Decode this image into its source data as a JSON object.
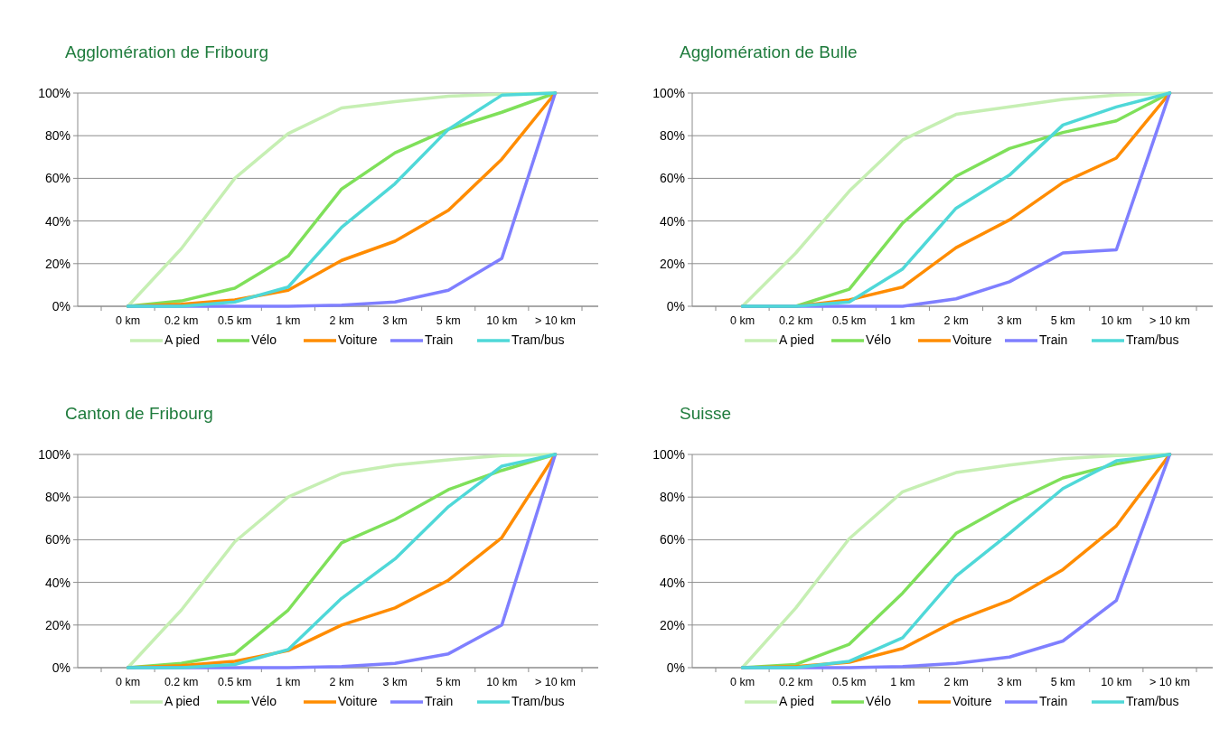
{
  "chart_data": [
    {
      "type": "line",
      "title": "Agglomération de Fribourg",
      "categories": [
        "0 km",
        "0.2 km",
        "0.5 km",
        "1 km",
        "2 km",
        "3 km",
        "5 km",
        "10 km",
        "> 10 km"
      ],
      "ylim": [
        0,
        100
      ],
      "yticks": [
        {
          "value": 0,
          "label": "0%"
        },
        {
          "value": 20,
          "label": "20%"
        },
        {
          "value": 40,
          "label": "40%"
        },
        {
          "value": 60,
          "label": "60%"
        },
        {
          "value": 80,
          "label": "80%"
        },
        {
          "value": 100,
          "label": "100%"
        }
      ],
      "grid": "y",
      "legend": "bottom",
      "marker": "none",
      "line_style": "solid",
      "series": [
        {
          "name": "A pied",
          "color": "#c6efb3",
          "values": [
            0,
            27,
            60,
            81,
            93,
            96,
            98.5,
            99.5,
            100
          ]
        },
        {
          "name": "Vélo",
          "color": "#7fe05a",
          "values": [
            0,
            2.5,
            8.5,
            23.5,
            55,
            72,
            83,
            91,
            100
          ]
        },
        {
          "name": "Voiture",
          "color": "#ff8c00",
          "values": [
            0,
            1,
            3,
            7.5,
            21.5,
            30.5,
            45,
            69,
            100
          ]
        },
        {
          "name": "Train",
          "color": "#7f7fff",
          "values": [
            0,
            0,
            0,
            0,
            0.5,
            2,
            7.5,
            22.5,
            100
          ]
        },
        {
          "name": "Tram/bus",
          "color": "#4fd8d8",
          "values": [
            0,
            0,
            2,
            9,
            37,
            57.5,
            83,
            99,
            100
          ]
        }
      ]
    },
    {
      "type": "line",
      "title": "Agglomération de Bulle",
      "categories": [
        "0 km",
        "0.2 km",
        "0.5 km",
        "1 km",
        "2 km",
        "3 km",
        "5 km",
        "10 km",
        "> 10 km"
      ],
      "ylim": [
        0,
        100
      ],
      "yticks": [
        {
          "value": 0,
          "label": "0%"
        },
        {
          "value": 20,
          "label": "20%"
        },
        {
          "value": 40,
          "label": "40%"
        },
        {
          "value": 60,
          "label": "60%"
        },
        {
          "value": 80,
          "label": "80%"
        },
        {
          "value": 100,
          "label": "100%"
        }
      ],
      "grid": "y",
      "legend": "bottom",
      "marker": "none",
      "line_style": "solid",
      "series": [
        {
          "name": "A pied",
          "color": "#c6efb3",
          "values": [
            0,
            25,
            54,
            78,
            90,
            93.5,
            97,
            99,
            100
          ]
        },
        {
          "name": "Vélo",
          "color": "#7fe05a",
          "values": [
            0,
            0,
            8,
            39,
            61,
            74,
            81.5,
            87,
            100
          ]
        },
        {
          "name": "Voiture",
          "color": "#ff8c00",
          "values": [
            0,
            0,
            3,
            9,
            27.5,
            40.5,
            58,
            69.5,
            100
          ]
        },
        {
          "name": "Train",
          "color": "#7f7fff",
          "values": [
            0,
            0,
            0,
            0,
            3.5,
            11.5,
            25,
            26.5,
            100
          ]
        },
        {
          "name": "Tram/bus",
          "color": "#4fd8d8",
          "values": [
            0,
            0,
            2,
            17.5,
            46,
            61.5,
            85,
            93.5,
            100
          ]
        }
      ]
    },
    {
      "type": "line",
      "title": "Canton de Fribourg",
      "categories": [
        "0 km",
        "0.2 km",
        "0.5 km",
        "1 km",
        "2 km",
        "3 km",
        "5 km",
        "10 km",
        "> 10 km"
      ],
      "ylim": [
        0,
        100
      ],
      "yticks": [
        {
          "value": 0,
          "label": "0%"
        },
        {
          "value": 20,
          "label": "20%"
        },
        {
          "value": 40,
          "label": "40%"
        },
        {
          "value": 60,
          "label": "60%"
        },
        {
          "value": 80,
          "label": "80%"
        },
        {
          "value": 100,
          "label": "100%"
        }
      ],
      "grid": "y",
      "legend": "bottom",
      "marker": "none",
      "line_style": "solid",
      "series": [
        {
          "name": "A pied",
          "color": "#c6efb3",
          "values": [
            0,
            27,
            59,
            80,
            91,
            95,
            97.5,
            99.5,
            100
          ]
        },
        {
          "name": "Vélo",
          "color": "#7fe05a",
          "values": [
            0,
            2,
            6.5,
            27,
            58.5,
            69.5,
            83.5,
            92.5,
            100
          ]
        },
        {
          "name": "Voiture",
          "color": "#ff8c00",
          "values": [
            0,
            1,
            3,
            8,
            20,
            28,
            41,
            61,
            100
          ]
        },
        {
          "name": "Train",
          "color": "#7f7fff",
          "values": [
            0,
            0,
            0,
            0,
            0.5,
            2,
            6.5,
            20,
            100
          ]
        },
        {
          "name": "Tram/bus",
          "color": "#4fd8d8",
          "values": [
            0,
            0,
            1.5,
            8.5,
            32.5,
            51,
            75.5,
            94.5,
            100
          ]
        }
      ]
    },
    {
      "type": "line",
      "title": "Suisse",
      "categories": [
        "0 km",
        "0.2 km",
        "0.5 km",
        "1 km",
        "2 km",
        "3 km",
        "5 km",
        "10 km",
        "> 10 km"
      ],
      "ylim": [
        0,
        100
      ],
      "yticks": [
        {
          "value": 0,
          "label": "0%"
        },
        {
          "value": 20,
          "label": "20%"
        },
        {
          "value": 40,
          "label": "40%"
        },
        {
          "value": 60,
          "label": "60%"
        },
        {
          "value": 80,
          "label": "80%"
        },
        {
          "value": 100,
          "label": "100%"
        }
      ],
      "grid": "y",
      "legend": "bottom",
      "marker": "none",
      "line_style": "solid",
      "series": [
        {
          "name": "A pied",
          "color": "#c6efb3",
          "values": [
            0,
            28,
            60.5,
            82.5,
            91.5,
            95,
            98,
            99.5,
            100
          ]
        },
        {
          "name": "Vélo",
          "color": "#7fe05a",
          "values": [
            0,
            1.5,
            11,
            35,
            63,
            77,
            89,
            95.5,
            100
          ]
        },
        {
          "name": "Voiture",
          "color": "#ff8c00",
          "values": [
            0,
            0.5,
            2.5,
            9,
            22,
            31.5,
            46,
            66.5,
            100
          ]
        },
        {
          "name": "Train",
          "color": "#7f7fff",
          "values": [
            0,
            0,
            0,
            0.5,
            2,
            5,
            12.5,
            31.5,
            100
          ]
        },
        {
          "name": "Tram/bus",
          "color": "#4fd8d8",
          "values": [
            0,
            0,
            3,
            14,
            43,
            63,
            84,
            97,
            100
          ]
        }
      ]
    }
  ]
}
